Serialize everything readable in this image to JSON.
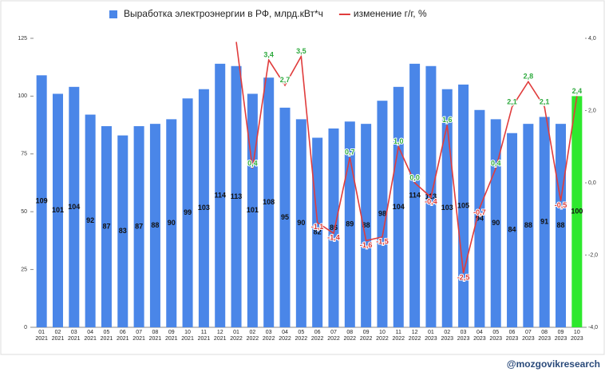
{
  "chart_data": {
    "type": "bar-line",
    "categories": [
      "01 2021",
      "02 2021",
      "03 2021",
      "04 2021",
      "05 2021",
      "06 2021",
      "07 2021",
      "08 2021",
      "09 2021",
      "10 2021",
      "11 2021",
      "12 2021",
      "01 2022",
      "02 2022",
      "03 2022",
      "04 2022",
      "05 2022",
      "06 2022",
      "07 2022",
      "08 2022",
      "09 2022",
      "10 2022",
      "11 2022",
      "12 2022",
      "01 2023",
      "02 2023",
      "03 2023",
      "04 2023",
      "05 2023",
      "06 2023",
      "07 2023",
      "08 2023",
      "09 2023",
      "10 2023"
    ],
    "series": [
      {
        "name": "Выработка электроэнергии в РФ, млрд.кВт*ч",
        "color": "#4a86e8",
        "colors": [
          "#4a86e8",
          "#4a86e8",
          "#4a86e8",
          "#4a86e8",
          "#4a86e8",
          "#4a86e8",
          "#4a86e8",
          "#4a86e8",
          "#4a86e8",
          "#4a86e8",
          "#4a86e8",
          "#4a86e8",
          "#4a86e8",
          "#4a86e8",
          "#4a86e8",
          "#4a86e8",
          "#4a86e8",
          "#4a86e8",
          "#4a86e8",
          "#4a86e8",
          "#4a86e8",
          "#4a86e8",
          "#4a86e8",
          "#4a86e8",
          "#4a86e8",
          "#4a86e8",
          "#4a86e8",
          "#4a86e8",
          "#4a86e8",
          "#4a86e8",
          "#4a86e8",
          "#4a86e8",
          "#4a86e8",
          "#2ee82e"
        ],
        "values": [
          109,
          101,
          104,
          92,
          87,
          83,
          87,
          88,
          90,
          99,
          103,
          114,
          113,
          101,
          108,
          95,
          90,
          82,
          86,
          89,
          88,
          98,
          104,
          114,
          113,
          103,
          105,
          94,
          90,
          84,
          88,
          91,
          88,
          100
        ]
      },
      {
        "name": "изменение г/г, %",
        "color": "#e03c3c",
        "axis": "y2",
        "values": [
          null,
          null,
          null,
          null,
          null,
          null,
          null,
          null,
          null,
          null,
          null,
          null,
          3.9,
          0.4,
          3.4,
          2.7,
          3.5,
          -1.1,
          -1.4,
          0.7,
          -1.6,
          -1.5,
          1.0,
          0.0,
          -0.4,
          1.6,
          -2.5,
          -0.7,
          0.4,
          2.1,
          2.8,
          2.1,
          -0.5,
          2.4
        ],
        "value_labels": [
          null,
          null,
          null,
          null,
          null,
          null,
          null,
          null,
          null,
          null,
          null,
          null,
          null,
          "0,4",
          "3,4",
          "2,7",
          "3,5",
          "-1,1",
          "-1,4",
          "0,7",
          "-1,6",
          "-1,5",
          "1,0",
          "0,0",
          "-0,4",
          "1,6",
          "-2,5",
          "-0,7",
          "0,4",
          "2,1",
          "2,8",
          "2,1",
          "-0,5",
          "2,4"
        ]
      }
    ],
    "ylim": [
      0,
      125
    ],
    "yticks": [
      0,
      25,
      50,
      75,
      100,
      125
    ],
    "y2lim": [
      -4,
      4
    ],
    "y2ticks": [
      {
        "value": -4,
        "label": "-4,0"
      },
      {
        "value": -2,
        "label": "-2,0"
      },
      {
        "value": 0,
        "label": "0,0"
      },
      {
        "value": 2,
        "label": "2,0"
      },
      {
        "value": 4,
        "label": "4,0"
      }
    ],
    "grid": false,
    "legend": "top",
    "watermark": "@mozgovikresearch"
  }
}
